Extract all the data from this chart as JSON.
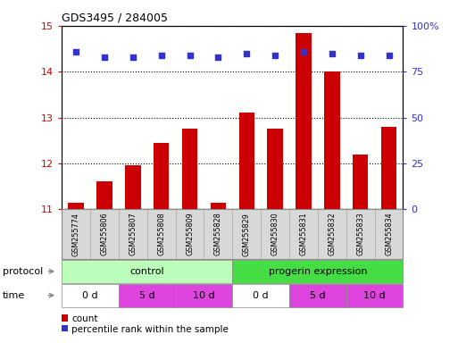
{
  "title": "GDS3495 / 284005",
  "samples": [
    "GSM255774",
    "GSM255806",
    "GSM255807",
    "GSM255808",
    "GSM255809",
    "GSM255828",
    "GSM255829",
    "GSM255830",
    "GSM255831",
    "GSM255832",
    "GSM255833",
    "GSM255834"
  ],
  "bar_values": [
    11.15,
    11.6,
    11.95,
    12.45,
    12.75,
    11.15,
    13.1,
    12.75,
    14.85,
    14.0,
    12.2,
    12.8
  ],
  "dot_values": [
    86,
    83,
    83,
    84,
    84,
    83,
    85,
    84,
    86,
    85,
    84,
    84
  ],
  "ylim_left": [
    11,
    15
  ],
  "ylim_right": [
    0,
    100
  ],
  "yticks_left": [
    11,
    12,
    13,
    14,
    15
  ],
  "yticks_right": [
    0,
    25,
    50,
    75,
    100
  ],
  "bar_color": "#cc0000",
  "dot_color": "#3333cc",
  "grid_color": "#000000",
  "protocol_control_color": "#bbffbb",
  "protocol_progerin_color": "#44dd44",
  "time_light_color": "#ffffff",
  "time_dark_color": "#dd44dd",
  "tick_label_color_left": "#cc0000",
  "tick_label_color_right": "#3333cc",
  "protocol_label": "protocol",
  "time_label": "time",
  "protocol_groups": [
    {
      "label": "control",
      "start": 0,
      "end": 6
    },
    {
      "label": "progerin expression",
      "start": 6,
      "end": 12
    }
  ],
  "time_groups": [
    {
      "label": "0 d",
      "start": 0,
      "end": 2,
      "dark": false
    },
    {
      "label": "5 d",
      "start": 2,
      "end": 4,
      "dark": true
    },
    {
      "label": "10 d",
      "start": 4,
      "end": 6,
      "dark": true
    },
    {
      "label": "0 d",
      "start": 6,
      "end": 8,
      "dark": false
    },
    {
      "label": "5 d",
      "start": 8,
      "end": 10,
      "dark": true
    },
    {
      "label": "10 d",
      "start": 10,
      "end": 12,
      "dark": true
    }
  ],
  "legend_bar_label": "count",
  "legend_dot_label": "percentile rank within the sample",
  "bg_color": "#ffffff",
  "sample_bg_color": "#d8d8d8"
}
